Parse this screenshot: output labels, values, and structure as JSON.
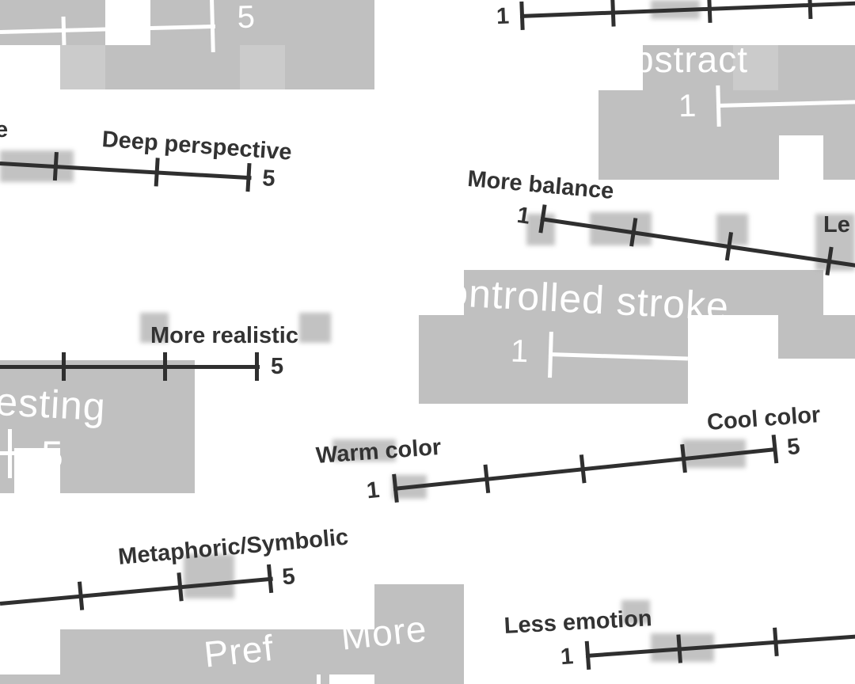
{
  "scales": {
    "top_left": {
      "high": "5"
    },
    "top_right": {
      "low": "1"
    },
    "abstract": {
      "label": "bstract",
      "low": "1"
    },
    "perspective": {
      "left_label": "e",
      "right_label": "Deep perspective",
      "high": "5"
    },
    "balance": {
      "left_label": "More balance",
      "right_label": "Le",
      "low": "1"
    },
    "realistic": {
      "right_label": "More realistic",
      "high": "5"
    },
    "stroke": {
      "label": "Controlled stroke",
      "low": "1"
    },
    "interesting": {
      "label": "esting",
      "high": "5"
    },
    "color": {
      "left_label": "Warm color",
      "right_label": "Cool color",
      "low": "1",
      "high": "5"
    },
    "symbolic": {
      "right_label": "Metaphoric/Symbolic",
      "high": "5"
    },
    "emotion": {
      "left_label": "Less emotion",
      "low": "1"
    },
    "prefer": {
      "label_a": "Pref",
      "label_b": "More"
    }
  }
}
